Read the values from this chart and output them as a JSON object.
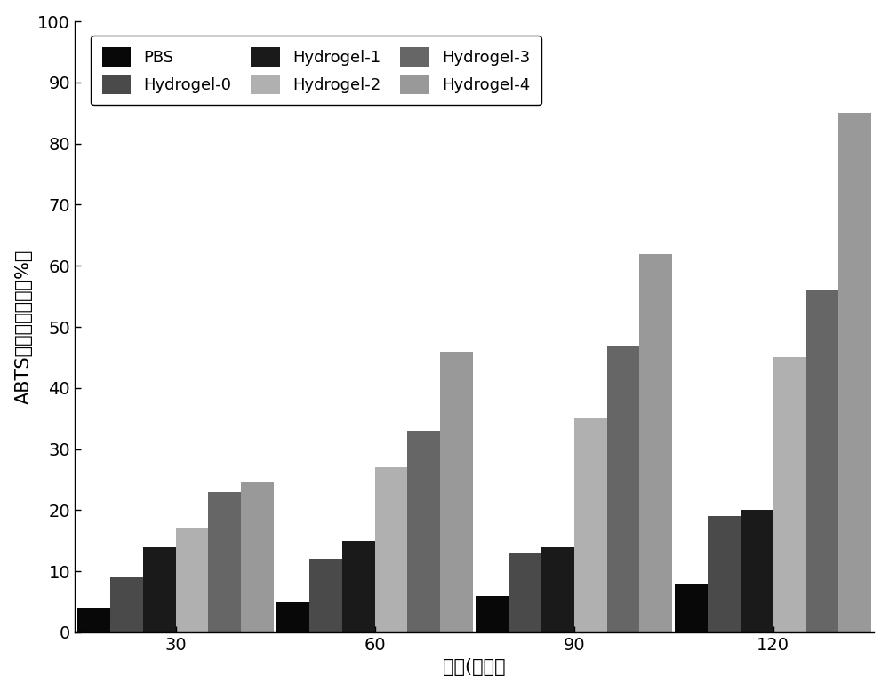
{
  "series": [
    "PBS",
    "Hydrogel-0",
    "Hydrogel-1",
    "Hydrogel-2",
    "Hydrogel-3",
    "Hydrogel-4"
  ],
  "time_points": [
    30,
    60,
    90,
    120
  ],
  "values": {
    "PBS": [
      4,
      5,
      6,
      8
    ],
    "Hydrogel-0": [
      9,
      12,
      13,
      19
    ],
    "Hydrogel-1": [
      14,
      15,
      14,
      20
    ],
    "Hydrogel-2": [
      17,
      27,
      35,
      45
    ],
    "Hydrogel-3": [
      23,
      33,
      47,
      56
    ],
    "Hydrogel-4": [
      24.5,
      46,
      62,
      85
    ]
  },
  "bar_colors": {
    "PBS": "#080808",
    "Hydrogel-0": "#4a4a4a",
    "Hydrogel-1": "#1a1a1a",
    "Hydrogel-2": "#b0b0b0",
    "Hydrogel-3": "#666666",
    "Hydrogel-4": "#999999"
  },
  "xlabel": "时间(小时）",
  "ylabel": "ABTS自由基清除率（%）",
  "ylim": [
    0,
    100
  ],
  "yticks": [
    0,
    10,
    20,
    30,
    40,
    50,
    60,
    70,
    80,
    90,
    100
  ],
  "background_color": "#ffffff",
  "bar_width": 0.12,
  "group_centers": [
    0.42,
    1.15,
    1.88,
    2.61
  ],
  "xlim": [
    0.05,
    2.98
  ],
  "tick_fontsize": 14,
  "axis_fontsize": 15,
  "legend_fontsize": 13
}
